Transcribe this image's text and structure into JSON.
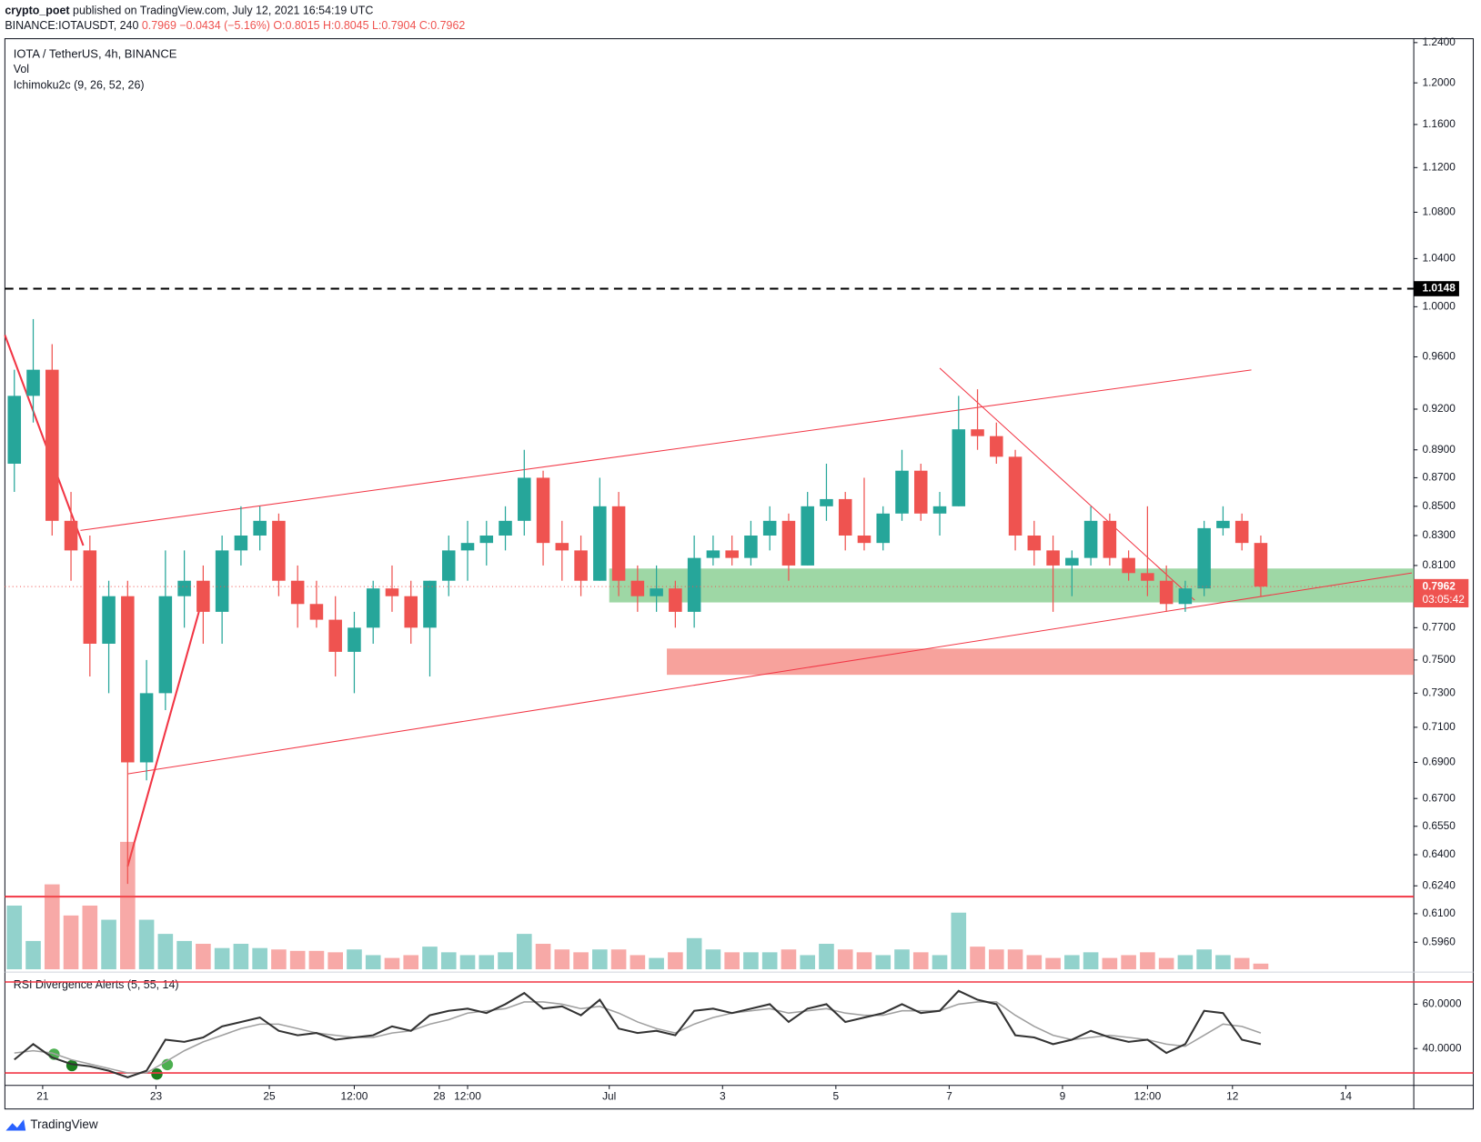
{
  "header": {
    "author": "crypto_poet",
    "published": "published on TradingView.com, July 12, 2021 16:54:19 UTC",
    "symbol": "BINANCE:IOTAUSDT, 240",
    "quote": "0.7969 −0.0434 (−5.16%)",
    "ohlc": "O:0.8015 H:0.8045 L:0.7904 C:0.7962"
  },
  "legend": {
    "instrument": "IOTA / TetherUS, 4h, BINANCE",
    "volume": "Vol",
    "ichimoku": "Ichimoku2c (9, 26, 52, 26)",
    "rsi": "RSI Divergence Alerts (5, 55, 14)"
  },
  "footer": {
    "brand": "TradingView"
  },
  "chart_data": {
    "type": "candlestick",
    "log_scale": true,
    "grid": false,
    "up_color": "#26a69a",
    "down_color": "#ef5350",
    "ylim": [
      0.583,
      1.243
    ],
    "yticks": [
      {
        "value": 1.24,
        "label": "1.2400"
      },
      {
        "value": 1.2,
        "label": "1.2000"
      },
      {
        "value": 1.16,
        "label": "1.1600"
      },
      {
        "value": 1.12,
        "label": "1.1200"
      },
      {
        "value": 1.08,
        "label": "1.0800"
      },
      {
        "value": 1.04,
        "label": "1.0400"
      },
      {
        "value": 1.0,
        "label": "1.0000"
      },
      {
        "value": 0.96,
        "label": "0.9600"
      },
      {
        "value": 0.92,
        "label": "0.9200"
      },
      {
        "value": 0.89,
        "label": "0.8900"
      },
      {
        "value": 0.87,
        "label": "0.8700"
      },
      {
        "value": 0.85,
        "label": "0.8500"
      },
      {
        "value": 0.83,
        "label": "0.8300"
      },
      {
        "value": 0.81,
        "label": "0.8100"
      },
      {
        "value": 0.77,
        "label": "0.7700"
      },
      {
        "value": 0.75,
        "label": "0.7500"
      },
      {
        "value": 0.73,
        "label": "0.7300"
      },
      {
        "value": 0.71,
        "label": "0.7100"
      },
      {
        "value": 0.69,
        "label": "0.6900"
      },
      {
        "value": 0.67,
        "label": "0.6700"
      },
      {
        "value": 0.655,
        "label": "0.6550"
      },
      {
        "value": 0.64,
        "label": "0.6400"
      },
      {
        "value": 0.624,
        "label": "0.6240"
      },
      {
        "value": 0.61,
        "label": "0.6100"
      },
      {
        "value": 0.596,
        "label": "0.5960"
      }
    ],
    "xlim": [
      -0.5,
      74
    ],
    "xticks": [
      {
        "value": 1.5,
        "label": "21"
      },
      {
        "value": 7.5,
        "label": "23"
      },
      {
        "value": 13.5,
        "label": "25"
      },
      {
        "value": 18,
        "label": "12:00"
      },
      {
        "value": 22.5,
        "label": "28"
      },
      {
        "value": 24,
        "label": "12:00"
      },
      {
        "value": 31.5,
        "label": "Jul"
      },
      {
        "value": 37.5,
        "label": "3"
      },
      {
        "value": 43.5,
        "label": "5"
      },
      {
        "value": 49.5,
        "label": "7"
      },
      {
        "value": 55.5,
        "label": "9"
      },
      {
        "value": 60,
        "label": "12:00"
      },
      {
        "value": 64.5,
        "label": "12"
      },
      {
        "value": 70.5,
        "label": "14"
      }
    ],
    "ohlc": [
      [
        0.88,
        0.95,
        0.86,
        0.93
      ],
      [
        0.93,
        0.99,
        0.91,
        0.95
      ],
      [
        0.95,
        0.97,
        0.83,
        0.84
      ],
      [
        0.84,
        0.86,
        0.8,
        0.82
      ],
      [
        0.82,
        0.83,
        0.74,
        0.76
      ],
      [
        0.76,
        0.8,
        0.73,
        0.79
      ],
      [
        0.79,
        0.8,
        0.625,
        0.69
      ],
      [
        0.69,
        0.75,
        0.68,
        0.73
      ],
      [
        0.73,
        0.82,
        0.72,
        0.79
      ],
      [
        0.79,
        0.82,
        0.77,
        0.8
      ],
      [
        0.8,
        0.81,
        0.76,
        0.78
      ],
      [
        0.78,
        0.83,
        0.76,
        0.82
      ],
      [
        0.82,
        0.85,
        0.81,
        0.83
      ],
      [
        0.83,
        0.85,
        0.82,
        0.84
      ],
      [
        0.84,
        0.845,
        0.79,
        0.8
      ],
      [
        0.8,
        0.81,
        0.77,
        0.785
      ],
      [
        0.785,
        0.8,
        0.77,
        0.775
      ],
      [
        0.775,
        0.79,
        0.74,
        0.755
      ],
      [
        0.755,
        0.78,
        0.73,
        0.77
      ],
      [
        0.77,
        0.8,
        0.76,
        0.795
      ],
      [
        0.795,
        0.81,
        0.78,
        0.79
      ],
      [
        0.79,
        0.8,
        0.76,
        0.77
      ],
      [
        0.77,
        0.8,
        0.74,
        0.8
      ],
      [
        0.8,
        0.83,
        0.79,
        0.82
      ],
      [
        0.82,
        0.84,
        0.8,
        0.825
      ],
      [
        0.825,
        0.84,
        0.81,
        0.83
      ],
      [
        0.83,
        0.85,
        0.82,
        0.84
      ],
      [
        0.84,
        0.89,
        0.83,
        0.87
      ],
      [
        0.87,
        0.875,
        0.81,
        0.825
      ],
      [
        0.825,
        0.84,
        0.8,
        0.82
      ],
      [
        0.82,
        0.83,
        0.79,
        0.8
      ],
      [
        0.8,
        0.87,
        0.8,
        0.85
      ],
      [
        0.85,
        0.86,
        0.79,
        0.8
      ],
      [
        0.8,
        0.81,
        0.78,
        0.79
      ],
      [
        0.79,
        0.81,
        0.78,
        0.795
      ],
      [
        0.795,
        0.8,
        0.77,
        0.78
      ],
      [
        0.78,
        0.83,
        0.77,
        0.815
      ],
      [
        0.815,
        0.83,
        0.81,
        0.82
      ],
      [
        0.82,
        0.83,
        0.81,
        0.815
      ],
      [
        0.815,
        0.84,
        0.81,
        0.83
      ],
      [
        0.83,
        0.85,
        0.82,
        0.84
      ],
      [
        0.84,
        0.845,
        0.8,
        0.81
      ],
      [
        0.81,
        0.86,
        0.81,
        0.85
      ],
      [
        0.85,
        0.88,
        0.84,
        0.855
      ],
      [
        0.855,
        0.86,
        0.82,
        0.83
      ],
      [
        0.83,
        0.87,
        0.82,
        0.825
      ],
      [
        0.825,
        0.85,
        0.82,
        0.845
      ],
      [
        0.845,
        0.89,
        0.84,
        0.875
      ],
      [
        0.875,
        0.88,
        0.84,
        0.845
      ],
      [
        0.845,
        0.86,
        0.83,
        0.85
      ],
      [
        0.85,
        0.93,
        0.85,
        0.905
      ],
      [
        0.905,
        0.935,
        0.89,
        0.9
      ],
      [
        0.9,
        0.91,
        0.88,
        0.885
      ],
      [
        0.885,
        0.89,
        0.82,
        0.83
      ],
      [
        0.83,
        0.84,
        0.81,
        0.82
      ],
      [
        0.82,
        0.83,
        0.78,
        0.81
      ],
      [
        0.81,
        0.82,
        0.79,
        0.815
      ],
      [
        0.815,
        0.85,
        0.81,
        0.84
      ],
      [
        0.84,
        0.845,
        0.81,
        0.815
      ],
      [
        0.815,
        0.82,
        0.8,
        0.805
      ],
      [
        0.805,
        0.85,
        0.79,
        0.8
      ],
      [
        0.8,
        0.81,
        0.78,
        0.785
      ],
      [
        0.785,
        0.8,
        0.78,
        0.795
      ],
      [
        0.795,
        0.84,
        0.79,
        0.835
      ],
      [
        0.835,
        0.85,
        0.83,
        0.84
      ],
      [
        0.84,
        0.845,
        0.82,
        0.825
      ],
      [
        0.825,
        0.83,
        0.79,
        0.7962
      ]
    ],
    "volume": [
      45,
      20,
      60,
      38,
      45,
      35,
      90,
      35,
      25,
      20,
      18,
      15,
      18,
      15,
      14,
      13,
      13,
      12,
      14,
      10,
      8,
      10,
      16,
      12,
      10,
      10,
      12,
      25,
      18,
      14,
      12,
      14,
      14,
      10,
      8,
      12,
      22,
      14,
      12,
      12,
      12,
      14,
      10,
      18,
      14,
      12,
      10,
      14,
      12,
      10,
      40,
      16,
      14,
      14,
      10,
      8,
      10,
      12,
      8,
      10,
      12,
      8,
      10,
      14,
      10,
      8,
      4
    ],
    "vlim": [
      0,
      100
    ],
    "reference_level": 1.0148,
    "last_price": 0.7962,
    "countdown": "03:05:42",
    "zones": [
      {
        "low": 0.786,
        "high": 0.808,
        "color": "#7ec987"
      },
      {
        "low": 0.741,
        "high": 0.757,
        "color": "#f47b72"
      }
    ],
    "rsi": {
      "color": "#333333",
      "values": [
        35,
        42,
        36,
        33,
        32,
        30,
        27,
        30,
        44,
        43,
        45,
        50,
        52,
        54,
        48,
        46,
        47,
        44,
        45,
        46,
        50,
        48,
        55,
        57,
        58,
        56,
        60,
        65,
        58,
        59,
        55,
        62,
        49,
        47,
        48,
        46,
        57,
        58,
        56,
        58,
        60,
        52,
        58,
        60,
        52,
        54,
        56,
        60,
        56,
        57,
        66,
        62,
        60,
        46,
        45,
        42,
        44,
        48,
        45,
        43,
        44,
        38,
        42,
        57,
        56,
        44,
        42
      ]
    },
    "rsi_signal": {
      "color": "#a0a0a0",
      "values": [
        38,
        39,
        38,
        35,
        33,
        31,
        29,
        29,
        34,
        39,
        43,
        46,
        49,
        51,
        51,
        49,
        47,
        46,
        45,
        45,
        47,
        48,
        51,
        53,
        56,
        57,
        58,
        61,
        61,
        60,
        58,
        59,
        56,
        52,
        49,
        47,
        51,
        54,
        56,
        57,
        58,
        56,
        57,
        58,
        56,
        55,
        55,
        57,
        57,
        57,
        60,
        61,
        61,
        55,
        50,
        46,
        44,
        45,
        46,
        45,
        44,
        42,
        41,
        46,
        51,
        50,
        47
      ]
    },
    "rsi_ylim": [
      23.4,
      73.6
    ],
    "rsi_yticks": [
      {
        "value": 60,
        "label": "60.0000"
      },
      {
        "value": 40,
        "label": "40.0000"
      }
    ],
    "rsi_levels": [
      70,
      29
    ]
  }
}
